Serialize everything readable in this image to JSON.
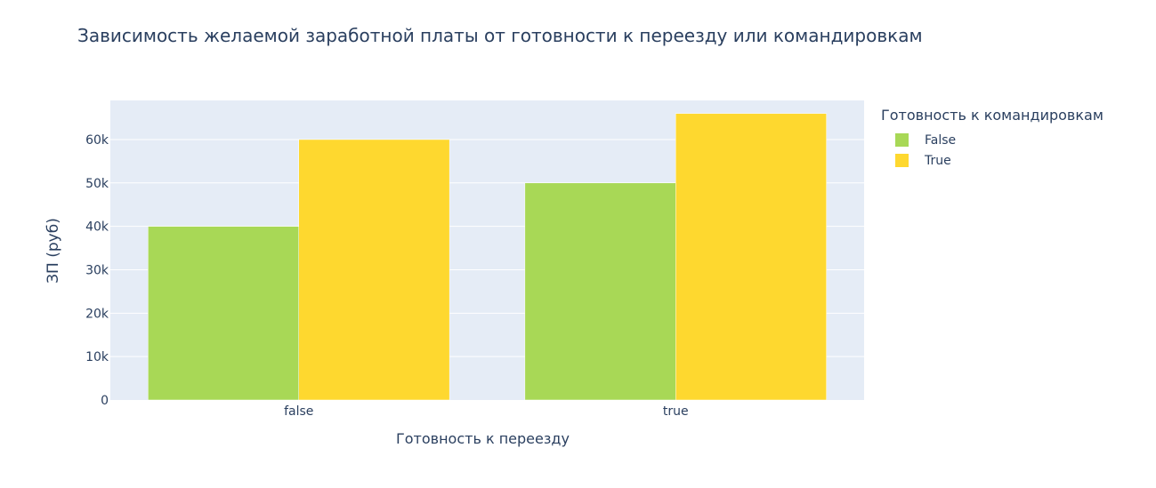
{
  "chart_data": {
    "type": "bar",
    "title": "Зависимость желаемой заработной платы от готовности к переезду или командировкам",
    "xlabel": "Готовность к переезду",
    "ylabel": "ЗП (руб)",
    "categories": [
      "false",
      "true"
    ],
    "series": [
      {
        "name": "False",
        "color": "#a8d856",
        "values": [
          40000,
          50000
        ]
      },
      {
        "name": "True",
        "color": "#fed82f",
        "values": [
          60000,
          66000
        ]
      }
    ],
    "ylim": [
      0,
      69000
    ],
    "yticks": [
      0,
      10000,
      20000,
      30000,
      40000,
      50000,
      60000
    ],
    "ytick_labels": [
      "0",
      "10k",
      "20k",
      "30k",
      "40k",
      "50k",
      "60k"
    ],
    "grid": true,
    "legend": {
      "title": "Готовность к командировкам",
      "position": "right"
    },
    "plot_bgcolor": "#e5ecf6"
  }
}
